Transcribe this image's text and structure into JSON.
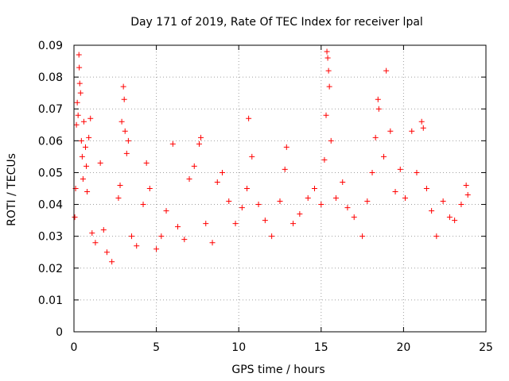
{
  "chart_data": {
    "type": "scatter",
    "title": "Day 171 of 2019, Rate Of TEC Index for receiver lpal",
    "xlabel": "GPS time / hours",
    "ylabel": "ROTI / TECUs",
    "xlim": [
      0,
      25
    ],
    "ylim": [
      0,
      0.09
    ],
    "x_ticks": [
      "0",
      "5",
      "10",
      "15",
      "20",
      "25"
    ],
    "y_ticks": [
      "0",
      "0.01",
      "0.02",
      "0.03",
      "0.04",
      "0.05",
      "0.06",
      "0.07",
      "0.08",
      "0.09"
    ],
    "grid": true,
    "marker": "+",
    "color": "#ff0000",
    "series": [
      {
        "values": [
          [
            0.05,
            0.036
          ],
          [
            0.1,
            0.045
          ],
          [
            0.15,
            0.065
          ],
          [
            0.2,
            0.072
          ],
          [
            0.25,
            0.068
          ],
          [
            0.3,
            0.087
          ],
          [
            0.32,
            0.083
          ],
          [
            0.35,
            0.078
          ],
          [
            0.4,
            0.075
          ],
          [
            0.45,
            0.06
          ],
          [
            0.5,
            0.055
          ],
          [
            0.55,
            0.048
          ],
          [
            0.6,
            0.066
          ],
          [
            0.7,
            0.058
          ],
          [
            0.75,
            0.052
          ],
          [
            0.8,
            0.044
          ],
          [
            0.9,
            0.061
          ],
          [
            1.0,
            0.067
          ],
          [
            1.1,
            0.031
          ],
          [
            1.3,
            0.028
          ],
          [
            1.6,
            0.053
          ],
          [
            1.8,
            0.032
          ],
          [
            2.0,
            0.025
          ],
          [
            2.3,
            0.022
          ],
          [
            2.7,
            0.042
          ],
          [
            2.8,
            0.046
          ],
          [
            2.9,
            0.066
          ],
          [
            3.0,
            0.077
          ],
          [
            3.05,
            0.073
          ],
          [
            3.1,
            0.063
          ],
          [
            3.2,
            0.056
          ],
          [
            3.3,
            0.06
          ],
          [
            3.5,
            0.03
          ],
          [
            3.8,
            0.027
          ],
          [
            4.2,
            0.04
          ],
          [
            4.4,
            0.053
          ],
          [
            4.6,
            0.045
          ],
          [
            5.0,
            0.026
          ],
          [
            5.3,
            0.03
          ],
          [
            5.6,
            0.038
          ],
          [
            6.0,
            0.059
          ],
          [
            6.3,
            0.033
          ],
          [
            6.7,
            0.029
          ],
          [
            7.0,
            0.048
          ],
          [
            7.3,
            0.052
          ],
          [
            7.6,
            0.059
          ],
          [
            7.7,
            0.061
          ],
          [
            8.0,
            0.034
          ],
          [
            8.4,
            0.028
          ],
          [
            8.7,
            0.047
          ],
          [
            9.0,
            0.05
          ],
          [
            9.4,
            0.041
          ],
          [
            9.8,
            0.034
          ],
          [
            10.2,
            0.039
          ],
          [
            10.5,
            0.045
          ],
          [
            10.6,
            0.067
          ],
          [
            10.8,
            0.055
          ],
          [
            11.2,
            0.04
          ],
          [
            11.6,
            0.035
          ],
          [
            12.0,
            0.03
          ],
          [
            12.5,
            0.041
          ],
          [
            12.8,
            0.051
          ],
          [
            12.9,
            0.058
          ],
          [
            13.3,
            0.034
          ],
          [
            13.7,
            0.037
          ],
          [
            14.2,
            0.042
          ],
          [
            14.6,
            0.045
          ],
          [
            15.0,
            0.04
          ],
          [
            15.2,
            0.054
          ],
          [
            15.3,
            0.068
          ],
          [
            15.35,
            0.088
          ],
          [
            15.4,
            0.086
          ],
          [
            15.45,
            0.082
          ],
          [
            15.5,
            0.077
          ],
          [
            15.6,
            0.06
          ],
          [
            15.9,
            0.042
          ],
          [
            16.3,
            0.047
          ],
          [
            16.6,
            0.039
          ],
          [
            17.0,
            0.036
          ],
          [
            17.5,
            0.03
          ],
          [
            17.8,
            0.041
          ],
          [
            18.1,
            0.05
          ],
          [
            18.3,
            0.061
          ],
          [
            18.45,
            0.073
          ],
          [
            18.5,
            0.07
          ],
          [
            18.8,
            0.055
          ],
          [
            18.95,
            0.082
          ],
          [
            19.2,
            0.063
          ],
          [
            19.5,
            0.044
          ],
          [
            19.8,
            0.051
          ],
          [
            20.1,
            0.042
          ],
          [
            20.5,
            0.063
          ],
          [
            20.8,
            0.05
          ],
          [
            21.1,
            0.066
          ],
          [
            21.2,
            0.064
          ],
          [
            21.4,
            0.045
          ],
          [
            21.7,
            0.038
          ],
          [
            22.0,
            0.03
          ],
          [
            22.4,
            0.041
          ],
          [
            22.8,
            0.036
          ],
          [
            23.1,
            0.035
          ],
          [
            23.5,
            0.04
          ],
          [
            23.8,
            0.046
          ],
          [
            23.9,
            0.043
          ]
        ]
      }
    ]
  }
}
